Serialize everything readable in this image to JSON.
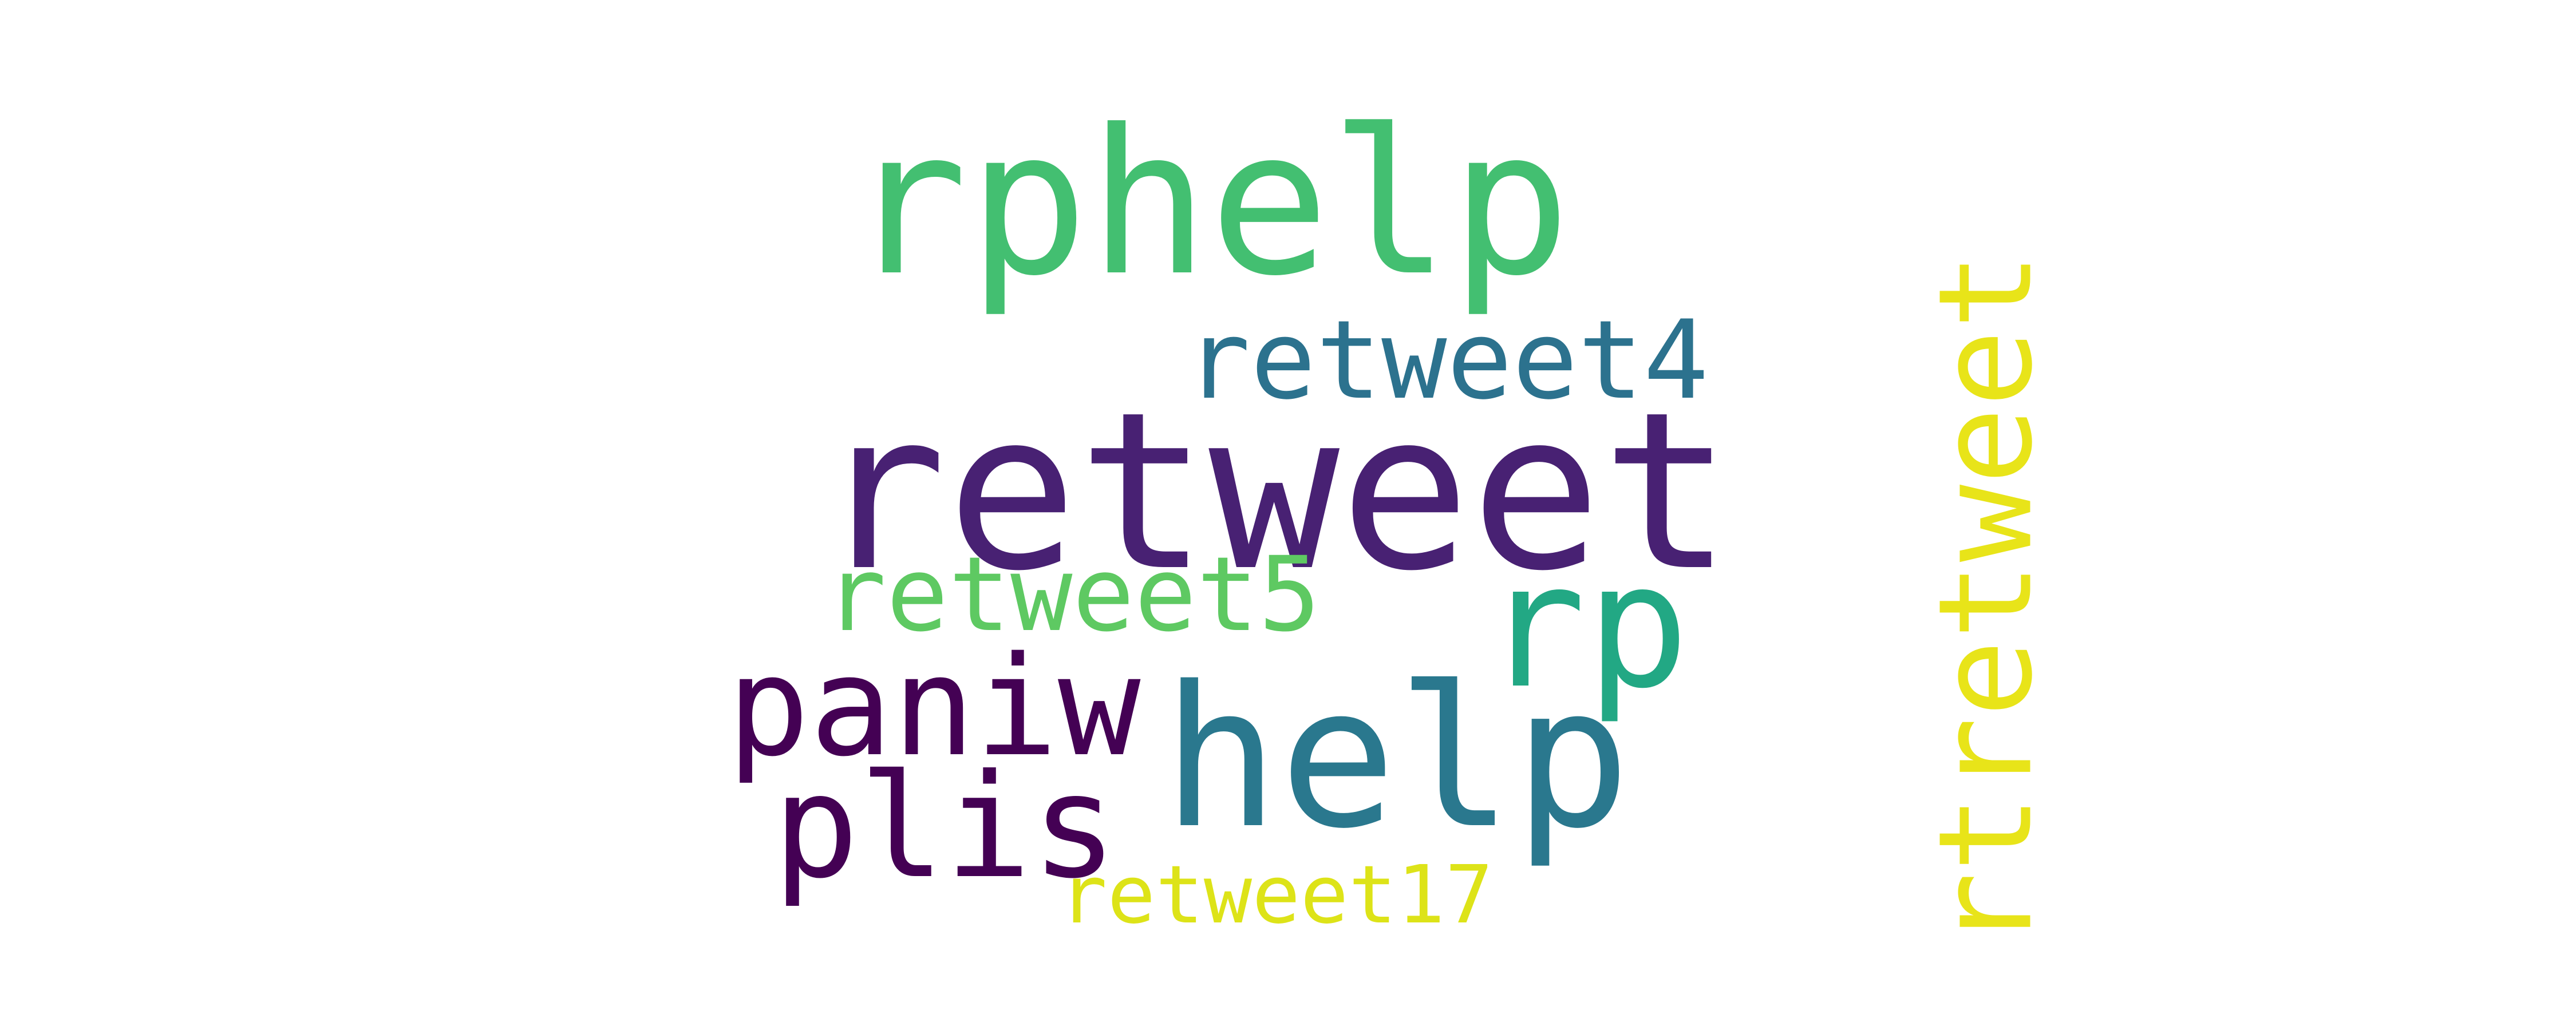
{
  "words": {
    "retweet": {
      "text": "retweet",
      "color": "#482173"
    },
    "rphelp": {
      "text": "rphelp",
      "color": "#43bf71"
    },
    "retweet4": {
      "text": "retweet4",
      "color": "#2c728e"
    },
    "retweet5": {
      "text": "retweet5",
      "color": "#5ec962"
    },
    "rp": {
      "text": "rp",
      "color": "#22a884"
    },
    "paniw": {
      "text": "paniw",
      "color": "#440154"
    },
    "help": {
      "text": "help",
      "color": "#2a788e"
    },
    "plis": {
      "text": "plis",
      "color": "#440154"
    },
    "retweet17": {
      "text": "retweet17",
      "color": "#dde318"
    },
    "rtretweet": {
      "text": "rtretweet",
      "color": "#e8e419"
    }
  }
}
